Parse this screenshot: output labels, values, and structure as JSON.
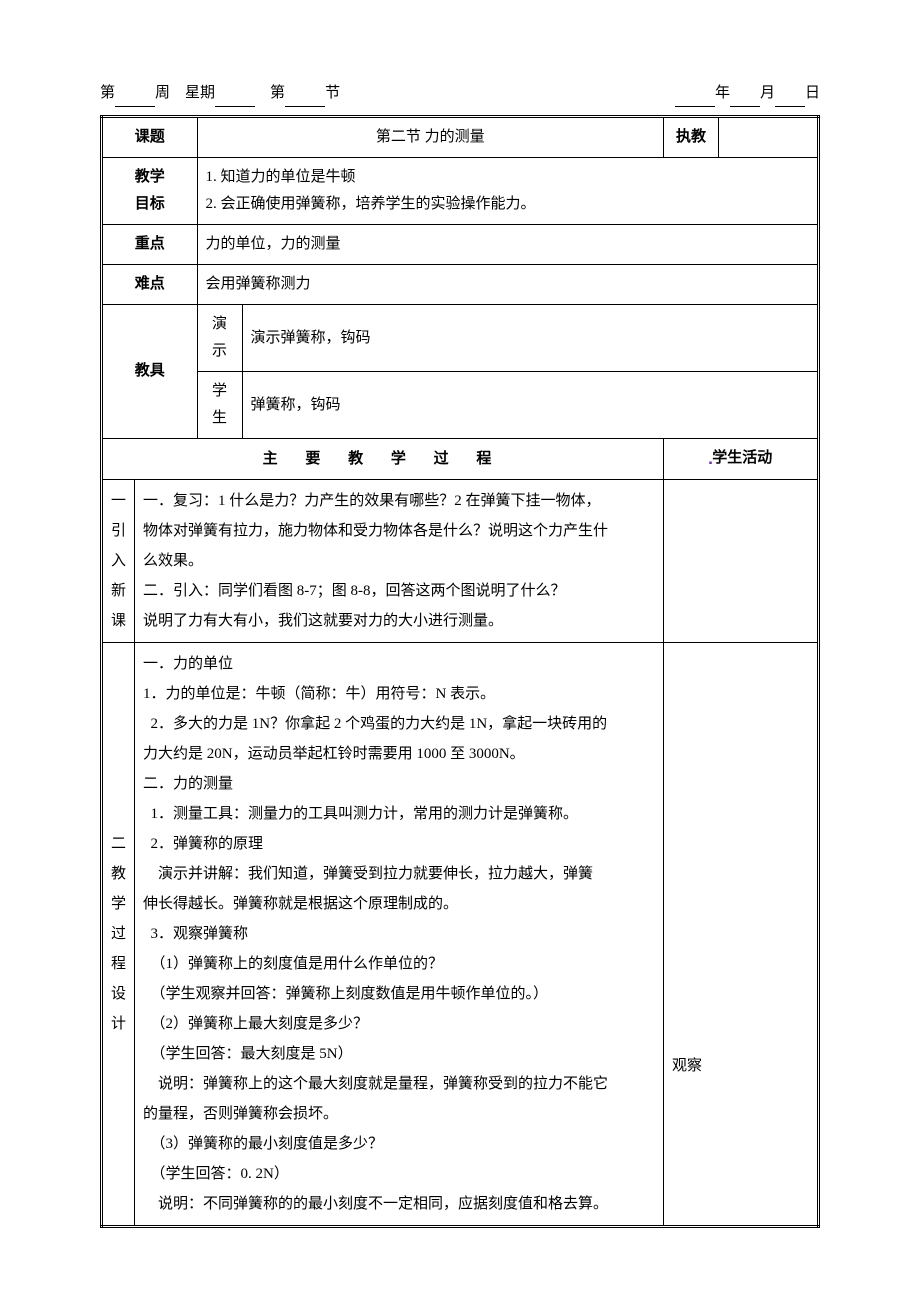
{
  "header": {
    "left_prefix": "第",
    "left_week": "周",
    "left_weekday_prefix": "星期",
    "left_period_prefix": "第",
    "left_period_suffix": "节",
    "right_year": "年",
    "right_month": "月",
    "right_day": "日"
  },
  "labels": {
    "topic": "课题",
    "instructor": "执教",
    "goals_line1": "教学",
    "goals_line2": "目标",
    "keypoint": "重点",
    "difficulty": "难点",
    "tools": "教具",
    "demo": "演示",
    "student": "学生",
    "main_process": "主 要 教 学 过 程",
    "activity": "学生活动",
    "section1_l1": "一",
    "section1_l2": "引",
    "section1_l3": "入",
    "section1_l4": "新",
    "section1_l5": "课",
    "section2_l1": "二",
    "section2_l2": "教",
    "section2_l3": "学",
    "section2_l4": "过",
    "section2_l5": "程",
    "section2_l6": "设",
    "section2_l7": "计"
  },
  "topic_value": "第二节 力的测量",
  "goals": {
    "item1": "1.  知道力的单位是牛顿",
    "item2": "2.  会正确使用弹簧称，培养学生的实验操作能力。"
  },
  "keypoint_value": "力的单位，力的测量",
  "difficulty_value": "会用弹簧称测力",
  "tools_demo": "演示弹簧称，钩码",
  "tools_student": "弹簧称，钩码",
  "intro": {
    "line1": "一．复习：1 什么是力？力产生的效果有哪些？2 在弹簧下挂一物体，",
    "line2": "物体对弹簧有拉力，施力物体和受力物体各是什么？说明这个力产生什",
    "line3": "么效果。",
    "line4": "二．引入：同学们看图 8-7；图 8-8，回答这两个图说明了什么？",
    "line5": "说明了力有大有小，我们这就要对力的大小进行测量。"
  },
  "process": {
    "p1": "一．力的单位",
    "p2": "1．力的单位是：牛顿（简称：牛）用符号：N 表示。",
    "p3": "  2．多大的力是 1N？你拿起 2 个鸡蛋的力大约是 1N，拿起一块砖用的",
    "p4": "力大约是 20N，运动员举起杠铃时需要用 1000 至 3000N。",
    "p5": "二．力的测量",
    "p6": "  1．测量工具：测量力的工具叫测力计，常用的测力计是弹簧称。",
    "p7": "  2．弹簧称的原理",
    "p8": "    演示并讲解：我们知道，弹簧受到拉力就要伸长，拉力越大，弹簧",
    "p9": "伸长得越长。弹簧称就是根据这个原理制成的。",
    "p10": "  3．观察弹簧称",
    "p11": "  （1）弹簧称上的刻度值是用什么作单位的？",
    "p12": "  （学生观察并回答：弹簧称上刻度数值是用牛顿作单位的。）",
    "p13": "  （2）弹簧称上最大刻度是多少？",
    "p14": "  （学生回答：最大刻度是 5N）",
    "p15": "    说明：弹簧称上的这个最大刻度就是量程，弹簧称受到的拉力不能它",
    "p16": "的量程，否则弹簧称会损坏。",
    "p17": "  （3）弹簧称的最小刻度值是多少？",
    "p18": "  （学生回答：0. 2N）",
    "p19": "    说明：不同弹簧称的的最小刻度不一定相同，应据刻度值和格去算。"
  },
  "activity_value": "观察"
}
